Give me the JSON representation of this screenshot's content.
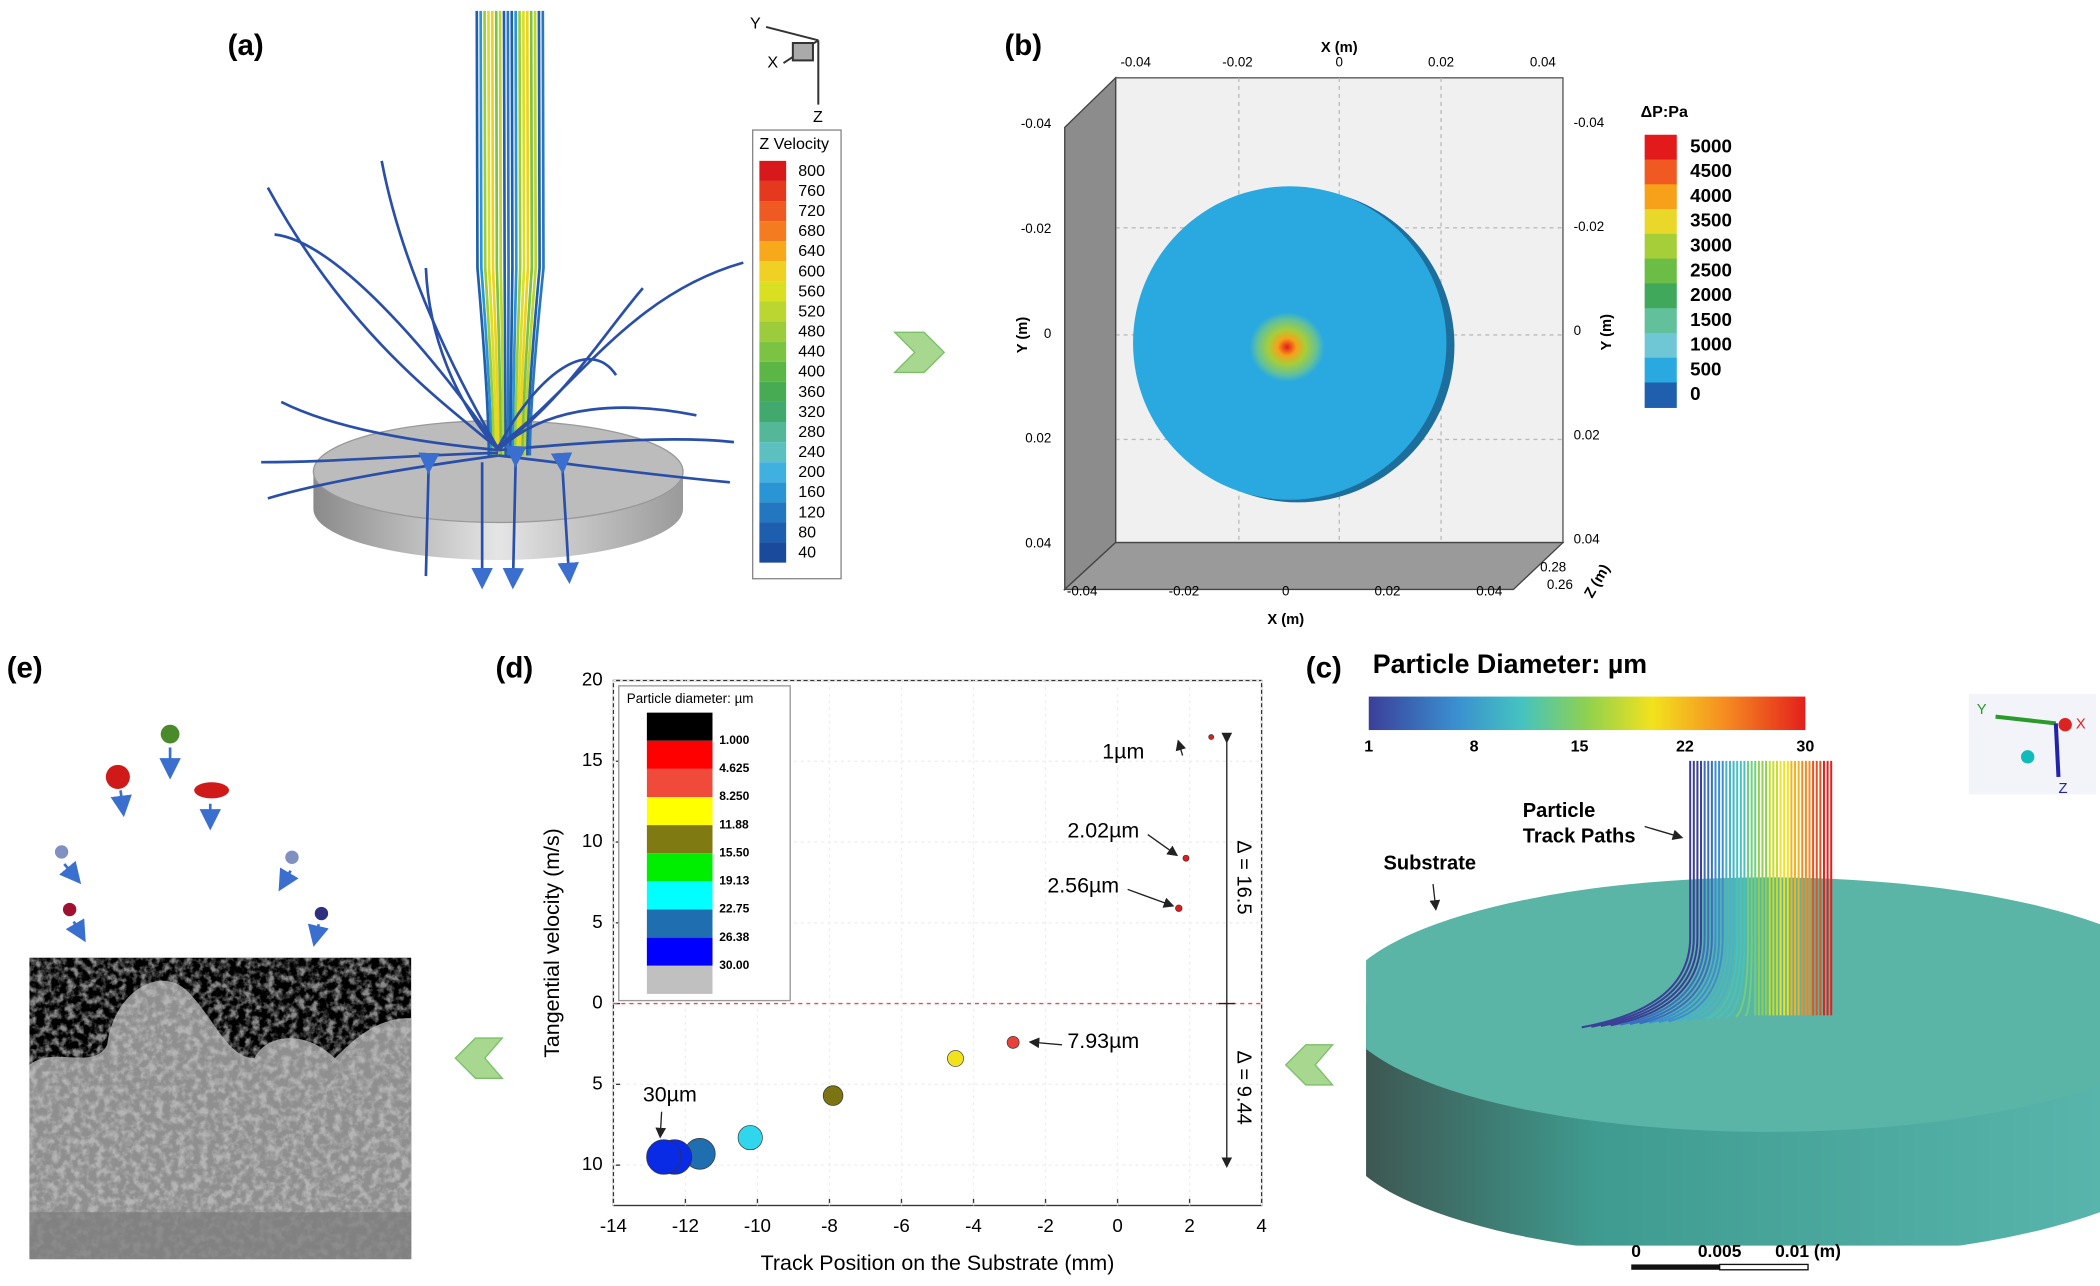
{
  "panel_labels": [
    "(a)",
    "(b)",
    "(c)",
    "(d)",
    "(e)"
  ],
  "panel_a": {
    "axis_labels": [
      "Y",
      "X",
      "Z"
    ],
    "legend_title": "Z Velocity",
    "legend_ticks": [
      800,
      760,
      720,
      680,
      640,
      600,
      560,
      520,
      480,
      440,
      400,
      360,
      320,
      280,
      240,
      200,
      160,
      120,
      80,
      40
    ],
    "legend_colors": [
      "#d7191c",
      "#e4391e",
      "#ef5a22",
      "#f47b20",
      "#f7a81b",
      "#f0d024",
      "#d9e021",
      "#bbd531",
      "#9ccc3c",
      "#7cc243",
      "#5cb646",
      "#46ab52",
      "#41a86e",
      "#54b797",
      "#5cc0c0",
      "#3fb0e0",
      "#2a95d5",
      "#2277c0",
      "#1d5fae",
      "#1a4a9c"
    ]
  },
  "panel_b": {
    "x_label": "X (m)",
    "y_label": "Y (m)",
    "z_label": "Z (m)",
    "x_ticks": [
      -0.04,
      -0.02,
      0,
      0.02,
      0.04
    ],
    "y_ticks": [
      -0.04,
      -0.02,
      0,
      0.02,
      0.04
    ],
    "z_ticks": [
      0.28,
      0.26
    ],
    "legend_title": "ΔP:Pa",
    "legend_ticks": [
      5000,
      4500,
      4000,
      3500,
      3000,
      2500,
      2000,
      1500,
      1000,
      500,
      0
    ],
    "legend_colors": [
      "#e31a1c",
      "#f05a22",
      "#f7a11a",
      "#e9d82a",
      "#a6ce39",
      "#6cbd45",
      "#3fa85b",
      "#62c19a",
      "#6fc7d6",
      "#29a9e0",
      "#1f5fae"
    ]
  },
  "panel_c": {
    "title": "Particle Diameter: µm",
    "colorbar_ticks": [
      1,
      8,
      15,
      22,
      30
    ],
    "track_label": [
      "Particle",
      "Track Paths"
    ],
    "substrate_label": "Substrate",
    "scale_ticks": [
      {
        "value": 0,
        "label": "0"
      },
      {
        "value": 0.005,
        "label": "0.005"
      },
      {
        "value": 0.01,
        "label": "0.01 (m)"
      }
    ],
    "axis_labels": [
      "Y",
      "X",
      "Z"
    ]
  },
  "chart_data": {
    "type": "scatter",
    "x_label": "Track Position on the Substrate (mm)",
    "y_label": "Tangential velocity (m/s)",
    "xlim": [
      -14,
      4
    ],
    "ylim": [
      -12.5,
      20
    ],
    "xticks": [
      -14,
      -12,
      -10,
      -8,
      -6,
      -4,
      -2,
      0,
      2,
      4
    ],
    "yticks": [
      20,
      15,
      10,
      5,
      0,
      {
        "value": -5,
        "label": "5"
      },
      {
        "value": -10,
        "label": "10"
      }
    ],
    "zero_line": true,
    "series": [
      {
        "x": [
          2.6,
          1.9,
          1.7,
          -2.9,
          -4.5,
          -7.9,
          -10.2,
          -11.6,
          -12.3,
          -12.6
        ],
        "values": [
          16.5,
          9.0,
          5.9,
          -2.4,
          -3.4,
          -5.7,
          -8.3,
          -9.3,
          -9.5,
          -9.5
        ],
        "sizes": [
          1,
          2.02,
          2.56,
          7.93,
          11.88,
          15.5,
          20,
          26.38,
          30,
          30
        ],
        "colors": [
          "#e31a1c",
          "#e31a1c",
          "#e31a1c",
          "#e8403a",
          "#f2e21d",
          "#7c7412",
          "#2fd6ec",
          "#1f6fb0",
          "#0a2be6",
          "#0a2be6"
        ]
      }
    ],
    "legend": {
      "title": "Particle diameter: µm",
      "levels": [
        {
          "value": 1,
          "label": "1.000"
        },
        {
          "value": 4.625,
          "label": "4.625"
        },
        {
          "value": 8.25,
          "label": "8.250"
        },
        {
          "value": 11.88,
          "label": "11.88"
        },
        {
          "value": 15.5,
          "label": "15.50"
        },
        {
          "value": 19.13,
          "label": "19.13"
        },
        {
          "value": 22.75,
          "label": "22.75"
        },
        {
          "value": 26.38,
          "label": "26.38"
        },
        {
          "value": 30,
          "label": "30.00"
        }
      ],
      "colors": [
        "#000000",
        "#ff0000",
        "#f04a3a",
        "#ffff00",
        "#7f7a12",
        "#00ee00",
        "#00ffff",
        "#1f6fb0",
        "#0000ff",
        "#c0c0c0"
      ]
    },
    "annotations": [
      "1µm",
      "2.02µm",
      "2.56µm",
      "7.93µm",
      "30µm"
    ],
    "delta_labels": [
      "Δ = 16.5",
      "Δ = 9.44"
    ]
  }
}
